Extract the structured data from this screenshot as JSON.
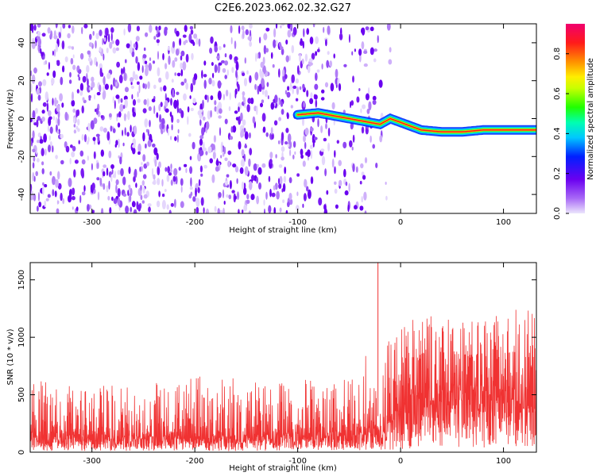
{
  "title": "C2E6.2023.062.02.32.G27",
  "chart_data": [
    {
      "type": "heatmap",
      "title": "",
      "xlabel": "Height of straight line (km)",
      "ylabel": "Frequency (Hz)",
      "xlim": [
        -360,
        132
      ],
      "ylim": [
        -50,
        50
      ],
      "xticks": [
        -300,
        -200,
        -100,
        0,
        100
      ],
      "yticks": [
        -40,
        -20,
        0,
        20,
        40
      ],
      "colorbar": {
        "label": "Normalized spectral amplitude",
        "range": [
          0,
          0.95
        ],
        "ticks": [
          0.0,
          0.2,
          0.4,
          0.6,
          0.8
        ],
        "colormap": "purple-blue-cyan-green-yellow-orange-red"
      },
      "ridge": {
        "x": [
          -100,
          -80,
          -60,
          -40,
          -30,
          -20,
          -10,
          0,
          10,
          20,
          40,
          60,
          80,
          100,
          132
        ],
        "frequency": [
          2,
          3,
          1,
          -1,
          -2,
          -3,
          0,
          -2,
          -4,
          -6,
          -7,
          -7,
          -6,
          -6,
          -6
        ]
      },
      "noise_extent_x": [
        -360,
        -30
      ]
    },
    {
      "type": "line",
      "title": "",
      "xlabel": "Height of straight line (km)",
      "ylabel": "SNR (10 * v/v)",
      "xlim": [
        -360,
        132
      ],
      "ylim": [
        0,
        1650
      ],
      "xticks": [
        -300,
        -200,
        -100,
        0,
        100
      ],
      "yticks": [
        0,
        500,
        1000,
        1500
      ],
      "series_color": "#f03232",
      "envelope": {
        "x": [
          -360,
          -300,
          -250,
          -200,
          -150,
          -100,
          -70,
          -50,
          -30,
          -20,
          -10,
          0,
          10,
          20,
          30,
          40,
          60,
          80,
          100,
          132
        ],
        "median": [
          230,
          210,
          200,
          200,
          210,
          230,
          240,
          260,
          290,
          320,
          430,
          560,
          660,
          770,
          840,
          870,
          800,
          780,
          800,
          830
        ],
        "upper": [
          600,
          550,
          560,
          620,
          600,
          620,
          650,
          680,
          850,
          900,
          980,
          1050,
          1100,
          1150,
          1200,
          1150,
          1100,
          1150,
          1200,
          1300
        ]
      },
      "spike": {
        "x": -22,
        "y": 1650
      }
    }
  ]
}
